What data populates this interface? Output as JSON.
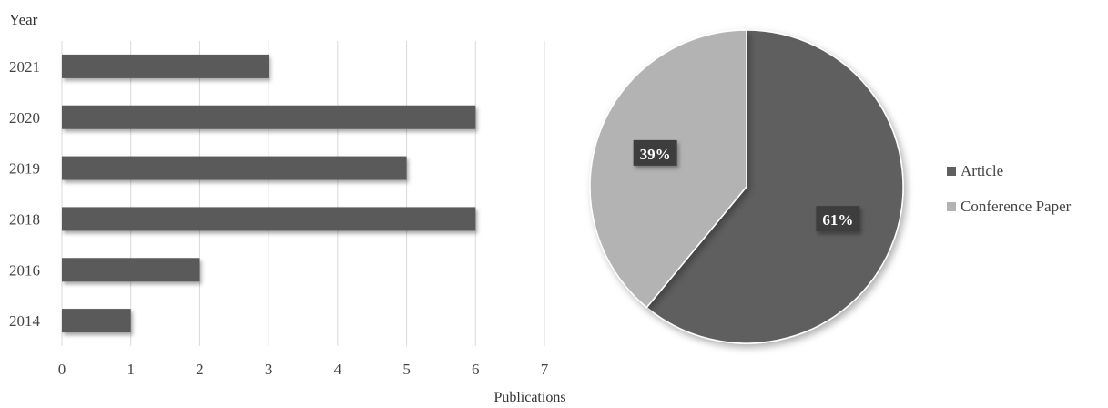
{
  "chart_data": [
    {
      "type": "bar",
      "orientation": "horizontal",
      "ylabel": "Year",
      "xlabel": "Publications",
      "categories": [
        "2021",
        "2020",
        "2019",
        "2018",
        "2016",
        "2014"
      ],
      "values": [
        3,
        6,
        5,
        6,
        2,
        1
      ],
      "xlim": [
        0,
        7
      ],
      "xticks": [
        "0",
        "1",
        "2",
        "3",
        "4",
        "5",
        "6",
        "7"
      ],
      "grid": "vertical",
      "bar_color": "#5a5a5a"
    },
    {
      "type": "pie",
      "labels": [
        "Article",
        "Conference Paper"
      ],
      "values": [
        61,
        39
      ],
      "data_labels": [
        "61%",
        "39%"
      ],
      "colors": [
        "#5f5f5f",
        "#b3b3b3"
      ],
      "legend_position": "right"
    }
  ]
}
